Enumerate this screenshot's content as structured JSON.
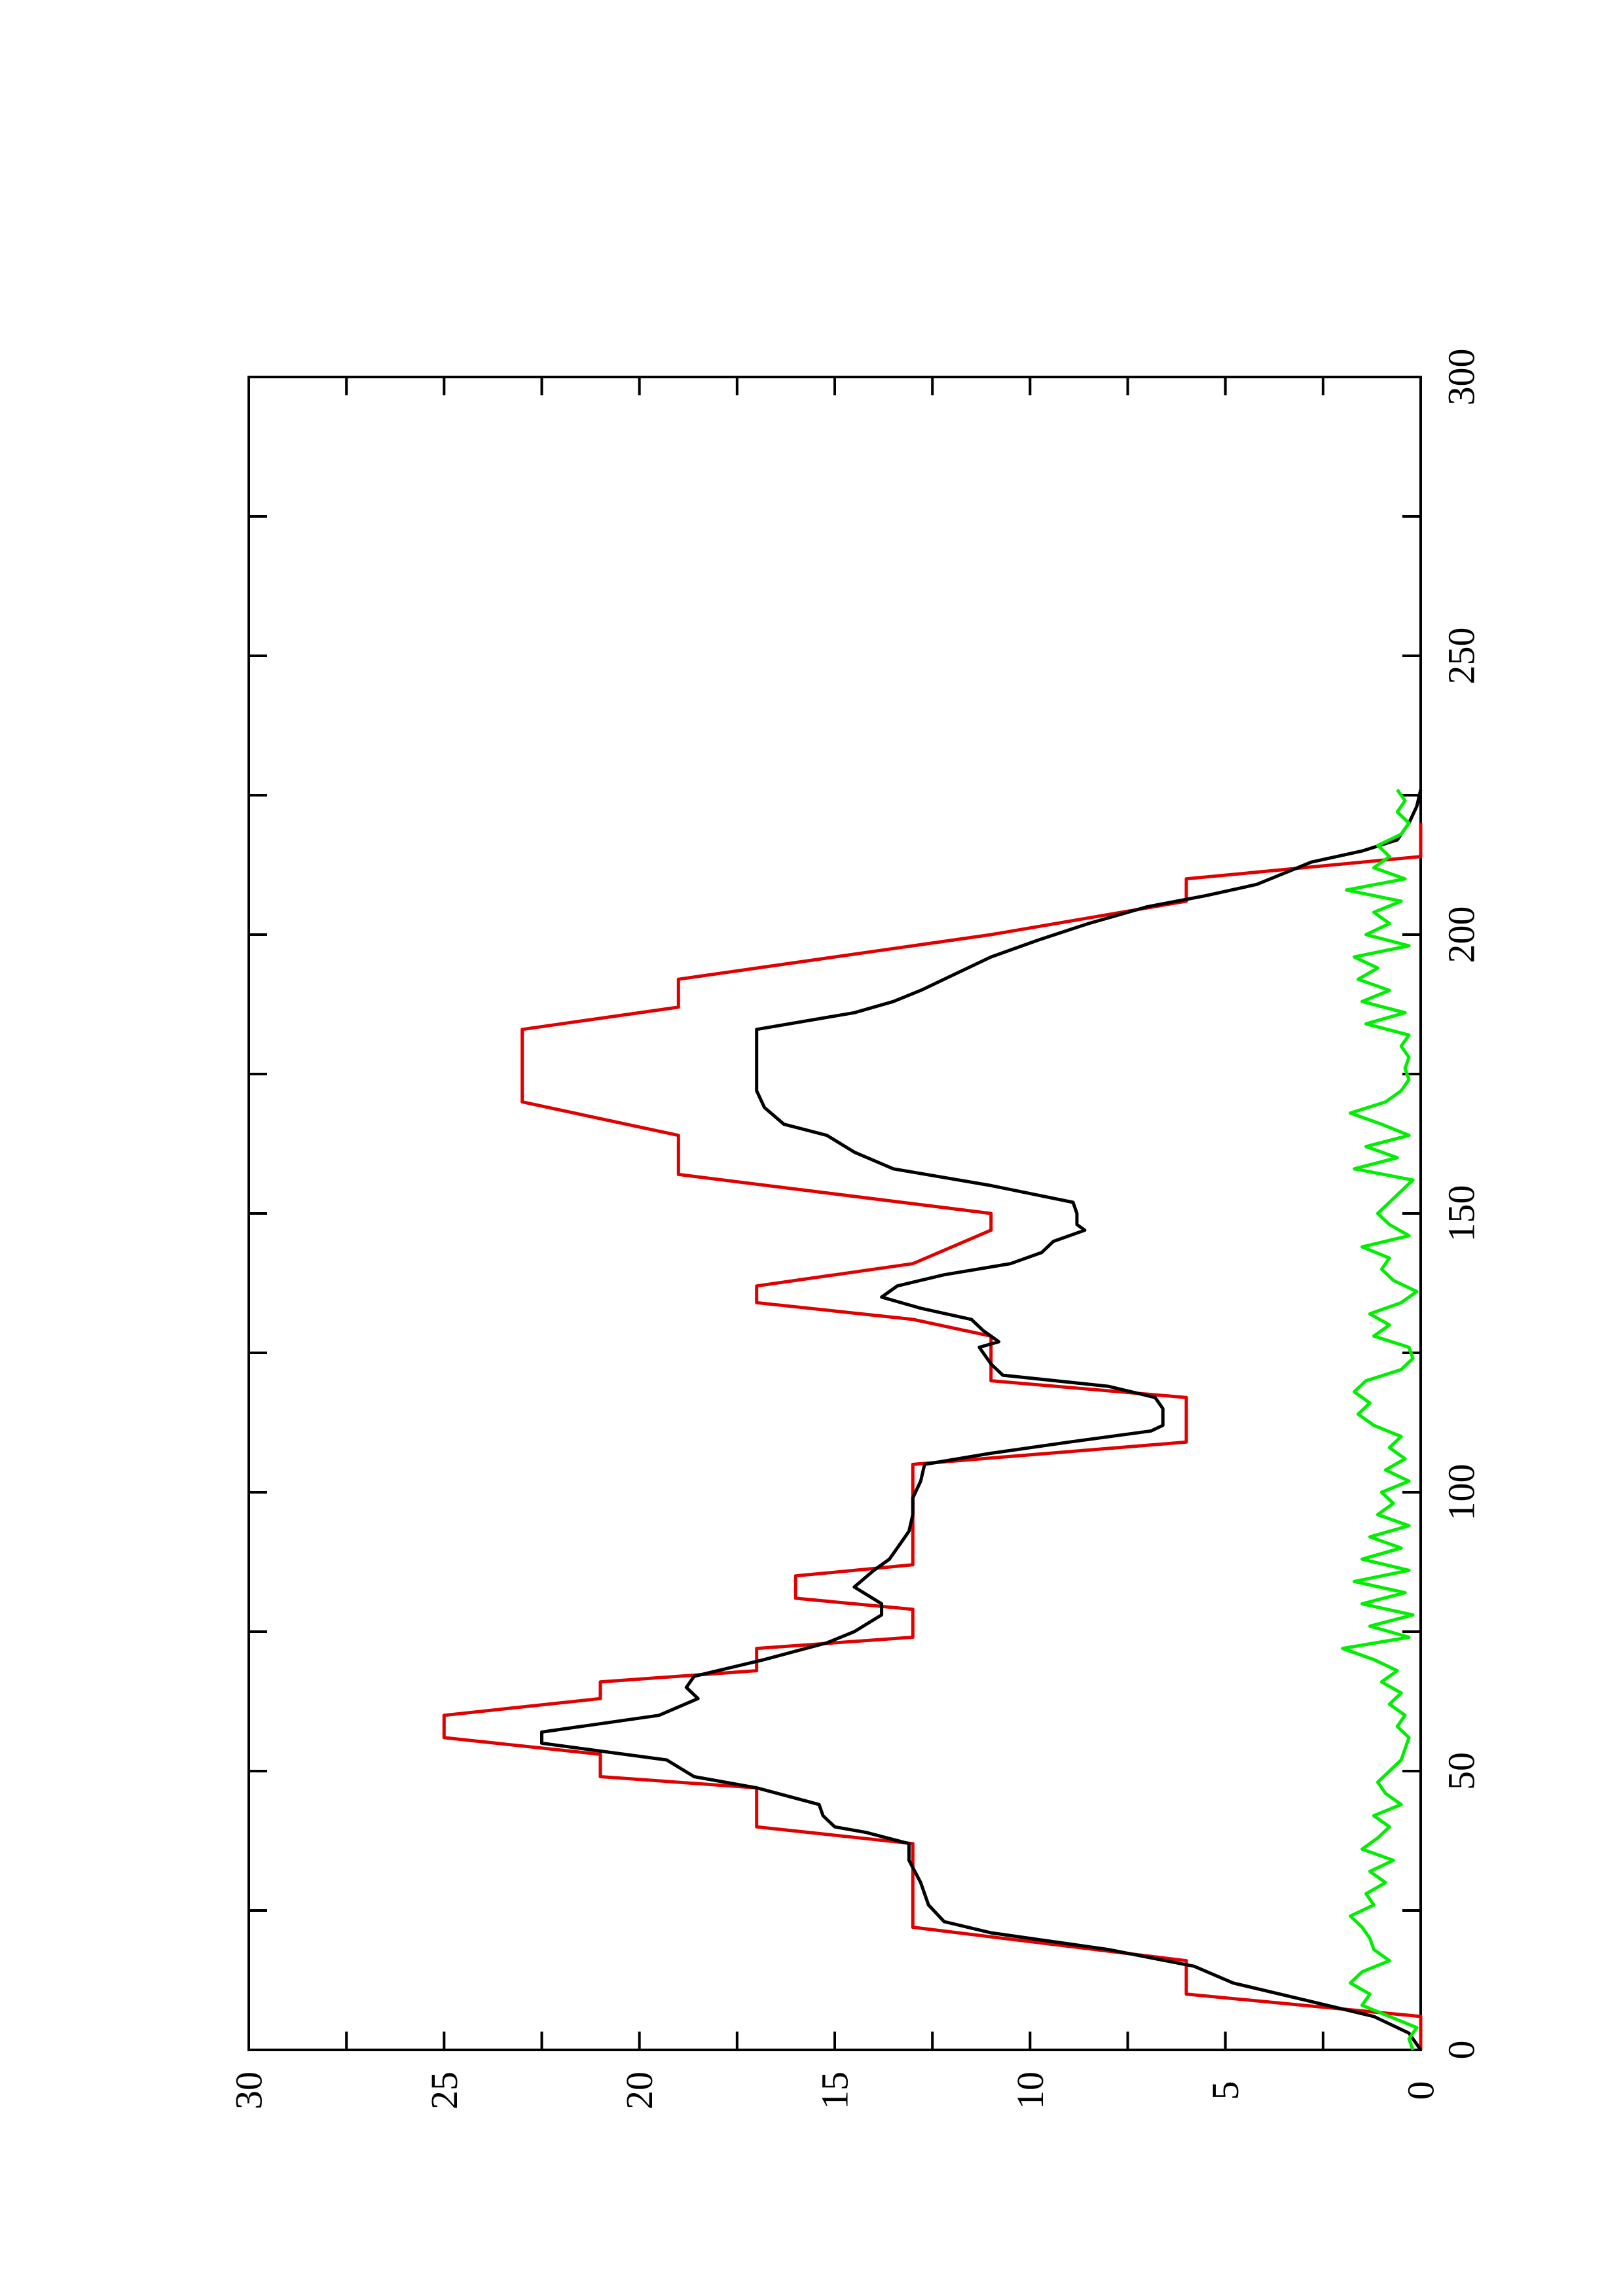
{
  "chart_data": {
    "type": "line",
    "title": "",
    "xlabel": "",
    "ylabel": "",
    "orientation": "rotated-90-ccw",
    "xlim": [
      0,
      300
    ],
    "ylim": [
      0,
      30
    ],
    "x_ticks": [
      0,
      50,
      100,
      150,
      200,
      250,
      300
    ],
    "x_tick_labels": [
      "0",
      "50",
      "100",
      "150",
      "200",
      "250",
      "300"
    ],
    "y_ticks": [
      0,
      5,
      10,
      15,
      20,
      25,
      30
    ],
    "y_tick_labels": [
      "0",
      "5",
      "10",
      "15",
      "20",
      "25",
      "30"
    ],
    "grid": false,
    "legend": "none",
    "series": [
      {
        "color": "#e00000",
        "values_xy": [
          [
            0,
            0
          ],
          [
            6,
            0
          ],
          [
            10,
            6
          ],
          [
            16,
            6
          ],
          [
            22,
            13
          ],
          [
            37,
            13
          ],
          [
            40,
            17
          ],
          [
            47,
            17
          ],
          [
            49,
            21
          ],
          [
            53,
            21
          ],
          [
            56,
            25
          ],
          [
            60,
            25
          ],
          [
            63,
            21
          ],
          [
            66,
            21
          ],
          [
            68,
            17
          ],
          [
            72,
            17
          ],
          [
            74,
            13
          ],
          [
            79,
            13
          ],
          [
            81,
            16
          ],
          [
            85,
            16
          ],
          [
            87,
            13
          ],
          [
            105,
            13
          ],
          [
            109,
            6
          ],
          [
            117,
            6
          ],
          [
            120,
            11
          ],
          [
            128,
            11
          ],
          [
            131,
            13
          ],
          [
            134,
            17
          ],
          [
            137,
            17
          ],
          [
            141,
            13
          ],
          [
            147,
            11
          ],
          [
            150,
            11
          ],
          [
            157,
            19
          ],
          [
            164,
            19
          ],
          [
            170,
            23
          ],
          [
            183,
            23
          ],
          [
            187,
            19
          ],
          [
            192,
            19
          ],
          [
            200,
            11
          ],
          [
            206,
            6
          ],
          [
            210,
            6
          ],
          [
            214,
            0
          ],
          [
            220,
            0
          ]
        ]
      },
      {
        "color": "#000000",
        "values_xy": [
          [
            0,
            0
          ],
          [
            3,
            0.3
          ],
          [
            6,
            1.2
          ],
          [
            9,
            3
          ],
          [
            12,
            4.8
          ],
          [
            15,
            5.8
          ],
          [
            18,
            8
          ],
          [
            21,
            11
          ],
          [
            23,
            12.2
          ],
          [
            26,
            12.6
          ],
          [
            30,
            12.8
          ],
          [
            34,
            13.1
          ],
          [
            37,
            13.1
          ],
          [
            39,
            14.2
          ],
          [
            40,
            15
          ],
          [
            42,
            15.3
          ],
          [
            44,
            15.4
          ],
          [
            47,
            17
          ],
          [
            49,
            18.6
          ],
          [
            52,
            19.3
          ],
          [
            55,
            22.5
          ],
          [
            57,
            22.5
          ],
          [
            60,
            19.5
          ],
          [
            63,
            18.5
          ],
          [
            65,
            18.8
          ],
          [
            67,
            18.6
          ],
          [
            70,
            16.8
          ],
          [
            73,
            15.2
          ],
          [
            75,
            14.5
          ],
          [
            78,
            13.8
          ],
          [
            80,
            13.8
          ],
          [
            83,
            14.5
          ],
          [
            86,
            14
          ],
          [
            88,
            13.6
          ],
          [
            90,
            13.4
          ],
          [
            93,
            13.1
          ],
          [
            96,
            13
          ],
          [
            99,
            13
          ],
          [
            102,
            12.8
          ],
          [
            105,
            12.7
          ],
          [
            107,
            11
          ],
          [
            109,
            9
          ],
          [
            111,
            6.9
          ],
          [
            112,
            6.6
          ],
          [
            115,
            6.6
          ],
          [
            117,
            6.8
          ],
          [
            119,
            8
          ],
          [
            121,
            10.7
          ],
          [
            123,
            11
          ],
          [
            126,
            11.3
          ],
          [
            127,
            10.8
          ],
          [
            129,
            11.2
          ],
          [
            131,
            11.5
          ],
          [
            133,
            12.8
          ],
          [
            135,
            13.8
          ],
          [
            137,
            13.4
          ],
          [
            139,
            12.2
          ],
          [
            141,
            10.5
          ],
          [
            143,
            9.7
          ],
          [
            145,
            9.4
          ],
          [
            147,
            8.6
          ],
          [
            148,
            8.8
          ],
          [
            150,
            8.8
          ],
          [
            152,
            8.9
          ],
          [
            155,
            11
          ],
          [
            158,
            13.5
          ],
          [
            161,
            14.5
          ],
          [
            164,
            15.2
          ],
          [
            166,
            16.3
          ],
          [
            169,
            16.8
          ],
          [
            172,
            17
          ],
          [
            177,
            17
          ],
          [
            183,
            17
          ],
          [
            186,
            14.5
          ],
          [
            188,
            13.5
          ],
          [
            190,
            12.8
          ],
          [
            193,
            11.9
          ],
          [
            196,
            11
          ],
          [
            199,
            9.8
          ],
          [
            202,
            8.5
          ],
          [
            205,
            7
          ],
          [
            207,
            5.5
          ],
          [
            209,
            4.2
          ],
          [
            211,
            3.5
          ],
          [
            213,
            2.8
          ],
          [
            215,
            1.5
          ],
          [
            217,
            0.6
          ],
          [
            220,
            0.3
          ],
          [
            223,
            0.1
          ],
          [
            226,
            0
          ]
        ]
      },
      {
        "color": "#00ee00",
        "values_xy": [
          [
            0,
            0.2
          ],
          [
            2,
            0.3
          ],
          [
            4,
            0.1
          ],
          [
            6,
            0.8
          ],
          [
            8,
            1.5
          ],
          [
            10,
            1.3
          ],
          [
            12,
            1.8
          ],
          [
            14,
            1.5
          ],
          [
            16,
            0.8
          ],
          [
            18,
            1.2
          ],
          [
            20,
            1.3
          ],
          [
            22,
            1.5
          ],
          [
            24,
            1.8
          ],
          [
            26,
            1.2
          ],
          [
            28,
            1.4
          ],
          [
            30,
            0.9
          ],
          [
            32,
            1.3
          ],
          [
            34,
            0.7
          ],
          [
            36,
            1.5
          ],
          [
            38,
            1.1
          ],
          [
            40,
            0.8
          ],
          [
            42,
            1.2
          ],
          [
            44,
            0.5
          ],
          [
            46,
            0.9
          ],
          [
            48,
            1.1
          ],
          [
            50,
            0.8
          ],
          [
            52,
            0.5
          ],
          [
            54,
            0.4
          ],
          [
            56,
            0.3
          ],
          [
            58,
            0.6
          ],
          [
            60,
            0.4
          ],
          [
            62,
            0.8
          ],
          [
            64,
            0.5
          ],
          [
            66,
            1
          ],
          [
            68,
            0.6
          ],
          [
            70,
            1.2
          ],
          [
            72,
            2
          ],
          [
            74,
            0.3
          ],
          [
            76,
            1.3
          ],
          [
            78,
            0.2
          ],
          [
            80,
            1.5
          ],
          [
            82,
            0.4
          ],
          [
            84,
            1.7
          ],
          [
            86,
            0.3
          ],
          [
            88,
            1.5
          ],
          [
            90,
            0.5
          ],
          [
            92,
            1.3
          ],
          [
            94,
            0.3
          ],
          [
            96,
            1.1
          ],
          [
            98,
            0.7
          ],
          [
            100,
            1
          ],
          [
            102,
            0.3
          ],
          [
            104,
            0.9
          ],
          [
            106,
            0.4
          ],
          [
            108,
            0.8
          ],
          [
            110,
            0.5
          ],
          [
            112,
            1.2
          ],
          [
            114,
            1.6
          ],
          [
            116,
            1.3
          ],
          [
            118,
            1.7
          ],
          [
            120,
            1.4
          ],
          [
            122,
            0.5
          ],
          [
            124,
            0.2
          ],
          [
            126,
            0.3
          ],
          [
            128,
            1.2
          ],
          [
            130,
            0.8
          ],
          [
            132,
            1.3
          ],
          [
            134,
            0.5
          ],
          [
            136,
            0.1
          ],
          [
            138,
            0.7
          ],
          [
            140,
            1
          ],
          [
            142,
            0.8
          ],
          [
            144,
            1.5
          ],
          [
            146,
            0.3
          ],
          [
            148,
            0.8
          ],
          [
            150,
            1.1
          ],
          [
            152,
            0.8
          ],
          [
            154,
            0.5
          ],
          [
            156,
            0.2
          ],
          [
            158,
            1.7
          ],
          [
            160,
            0.6
          ],
          [
            162,
            1.4
          ],
          [
            164,
            0.3
          ],
          [
            166,
            1
          ],
          [
            168,
            1.8
          ],
          [
            170,
            0.9
          ],
          [
            172,
            0.5
          ],
          [
            174,
            0.3
          ],
          [
            176,
            0.4
          ],
          [
            178,
            0.3
          ],
          [
            180,
            0.5
          ],
          [
            182,
            0.3
          ],
          [
            184,
            1.4
          ],
          [
            186,
            0.4
          ],
          [
            188,
            1.5
          ],
          [
            190,
            0.8
          ],
          [
            192,
            1.6
          ],
          [
            194,
            1.1
          ],
          [
            196,
            1.7
          ],
          [
            198,
            0.3
          ],
          [
            200,
            1.4
          ],
          [
            202,
            0.8
          ],
          [
            204,
            1.2
          ],
          [
            206,
            0.5
          ],
          [
            208,
            1.9
          ],
          [
            210,
            0.4
          ],
          [
            212,
            1.2
          ],
          [
            214,
            0.8
          ],
          [
            216,
            1.1
          ],
          [
            218,
            0.5
          ],
          [
            220,
            0.3
          ],
          [
            222,
            0.6
          ],
          [
            224,
            0.4
          ],
          [
            226,
            0.6
          ]
        ]
      }
    ]
  }
}
